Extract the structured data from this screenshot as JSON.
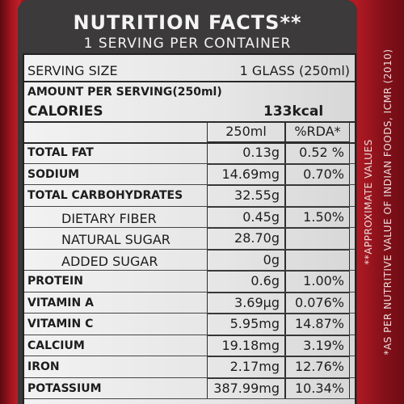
{
  "header": {
    "title": "NUTRITION FACTS**",
    "subtitle": "1 SERVING PER CONTAINER"
  },
  "serving": {
    "label": "SERVING SIZE",
    "value": "1 GLASS (250ml)"
  },
  "amount_label": "AMOUNT PER SERVING(250ml)",
  "calories": {
    "label": "CALORIES",
    "value": "133kcal"
  },
  "columns": {
    "amount": "250ml",
    "rda": "%RDA*"
  },
  "rows": [
    {
      "name": "TOTAL FAT",
      "amount": "0.13g",
      "rda": "0.52 %"
    },
    {
      "name": "SODIUM",
      "amount": "14.69mg",
      "rda": "0.70%"
    },
    {
      "name": "TOTAL CARBOHYDRATES",
      "amount": "32.55g",
      "rda": ""
    },
    {
      "name": "DIETARY FIBER",
      "amount": "0.45g",
      "rda": "1.50%"
    },
    {
      "name": "NATURAL SUGAR",
      "amount": "28.70g",
      "rda": ""
    },
    {
      "name": "ADDED SUGAR",
      "amount": "0g",
      "rda": ""
    },
    {
      "name": "PROTEIN",
      "amount": "0.6g",
      "rda": "1.00%"
    },
    {
      "name": "VITAMIN A",
      "amount": "3.69µg",
      "rda": "0.076%"
    },
    {
      "name": "VITAMIN C",
      "amount": "5.95mg",
      "rda": "14.87%"
    },
    {
      "name": "CALCIUM",
      "amount": "19.18mg",
      "rda": "3.19%"
    },
    {
      "name": "IRON",
      "amount": "2.17mg",
      "rda": "12.76%"
    },
    {
      "name": "POTASSIUM",
      "amount": "387.99mg",
      "rda": "10.34%"
    }
  ],
  "notes": {
    "approx": "**APPROXIMATE VALUES",
    "rda_basis": "*AS PER NUTRITIVE VALUE OF INDIAN FOODS, ICMR (2010)"
  },
  "colors": {
    "can_red": "#a3161f",
    "panel_dark": "#3c3a3a",
    "sheet_light": "#ececec"
  }
}
